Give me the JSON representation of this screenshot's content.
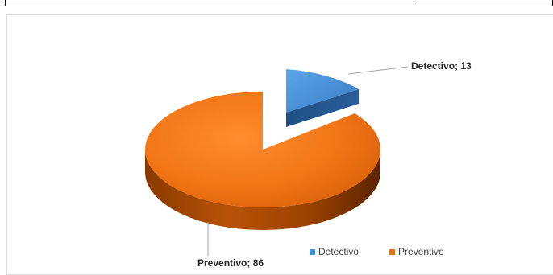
{
  "chart_data": {
    "type": "pie",
    "categories": [
      "Detectivo",
      "Preventivo"
    ],
    "values": [
      13,
      86
    ],
    "data_labels": [
      "Detectivo; 13",
      "Preventivo; 86"
    ],
    "colors": [
      "#4a90d9",
      "#ed6d12"
    ],
    "exploded": "Detectivo",
    "three_d": true,
    "legend": "bottom-right",
    "grid": false
  }
}
